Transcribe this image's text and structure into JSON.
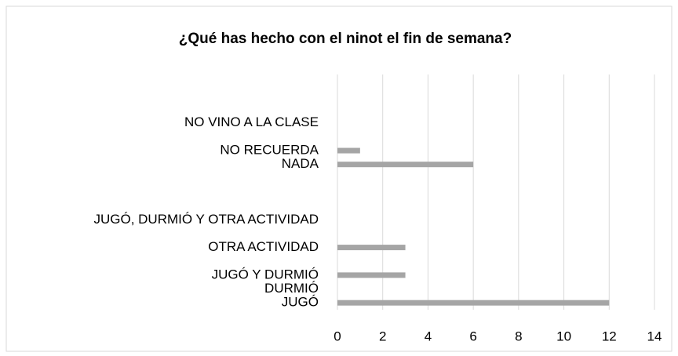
{
  "chart_data": {
    "type": "barh",
    "title": "¿Qué has hecho con el ninot el fin de semana?",
    "categories": [
      "JUGÓ",
      "DURMIÓ",
      "JUGÓ Y DURMIÓ",
      null,
      "OTRA ACTIVIDAD",
      null,
      "JUGÓ, DURMIÓ Y OTRA ACTIVIDAD",
      null,
      null,
      null,
      "NADA",
      "NO RECUERDA",
      null,
      "NO VINO A LA CLASE",
      null,
      null,
      null
    ],
    "values": [
      12,
      0,
      3,
      null,
      3,
      null,
      0,
      null,
      null,
      null,
      6,
      1,
      null,
      0,
      null,
      null,
      null
    ],
    "color": "#a5a5a5",
    "xlim": [
      0,
      14
    ],
    "xticks": [
      0,
      2,
      4,
      6,
      8,
      10,
      12,
      14
    ],
    "grid": true
  }
}
